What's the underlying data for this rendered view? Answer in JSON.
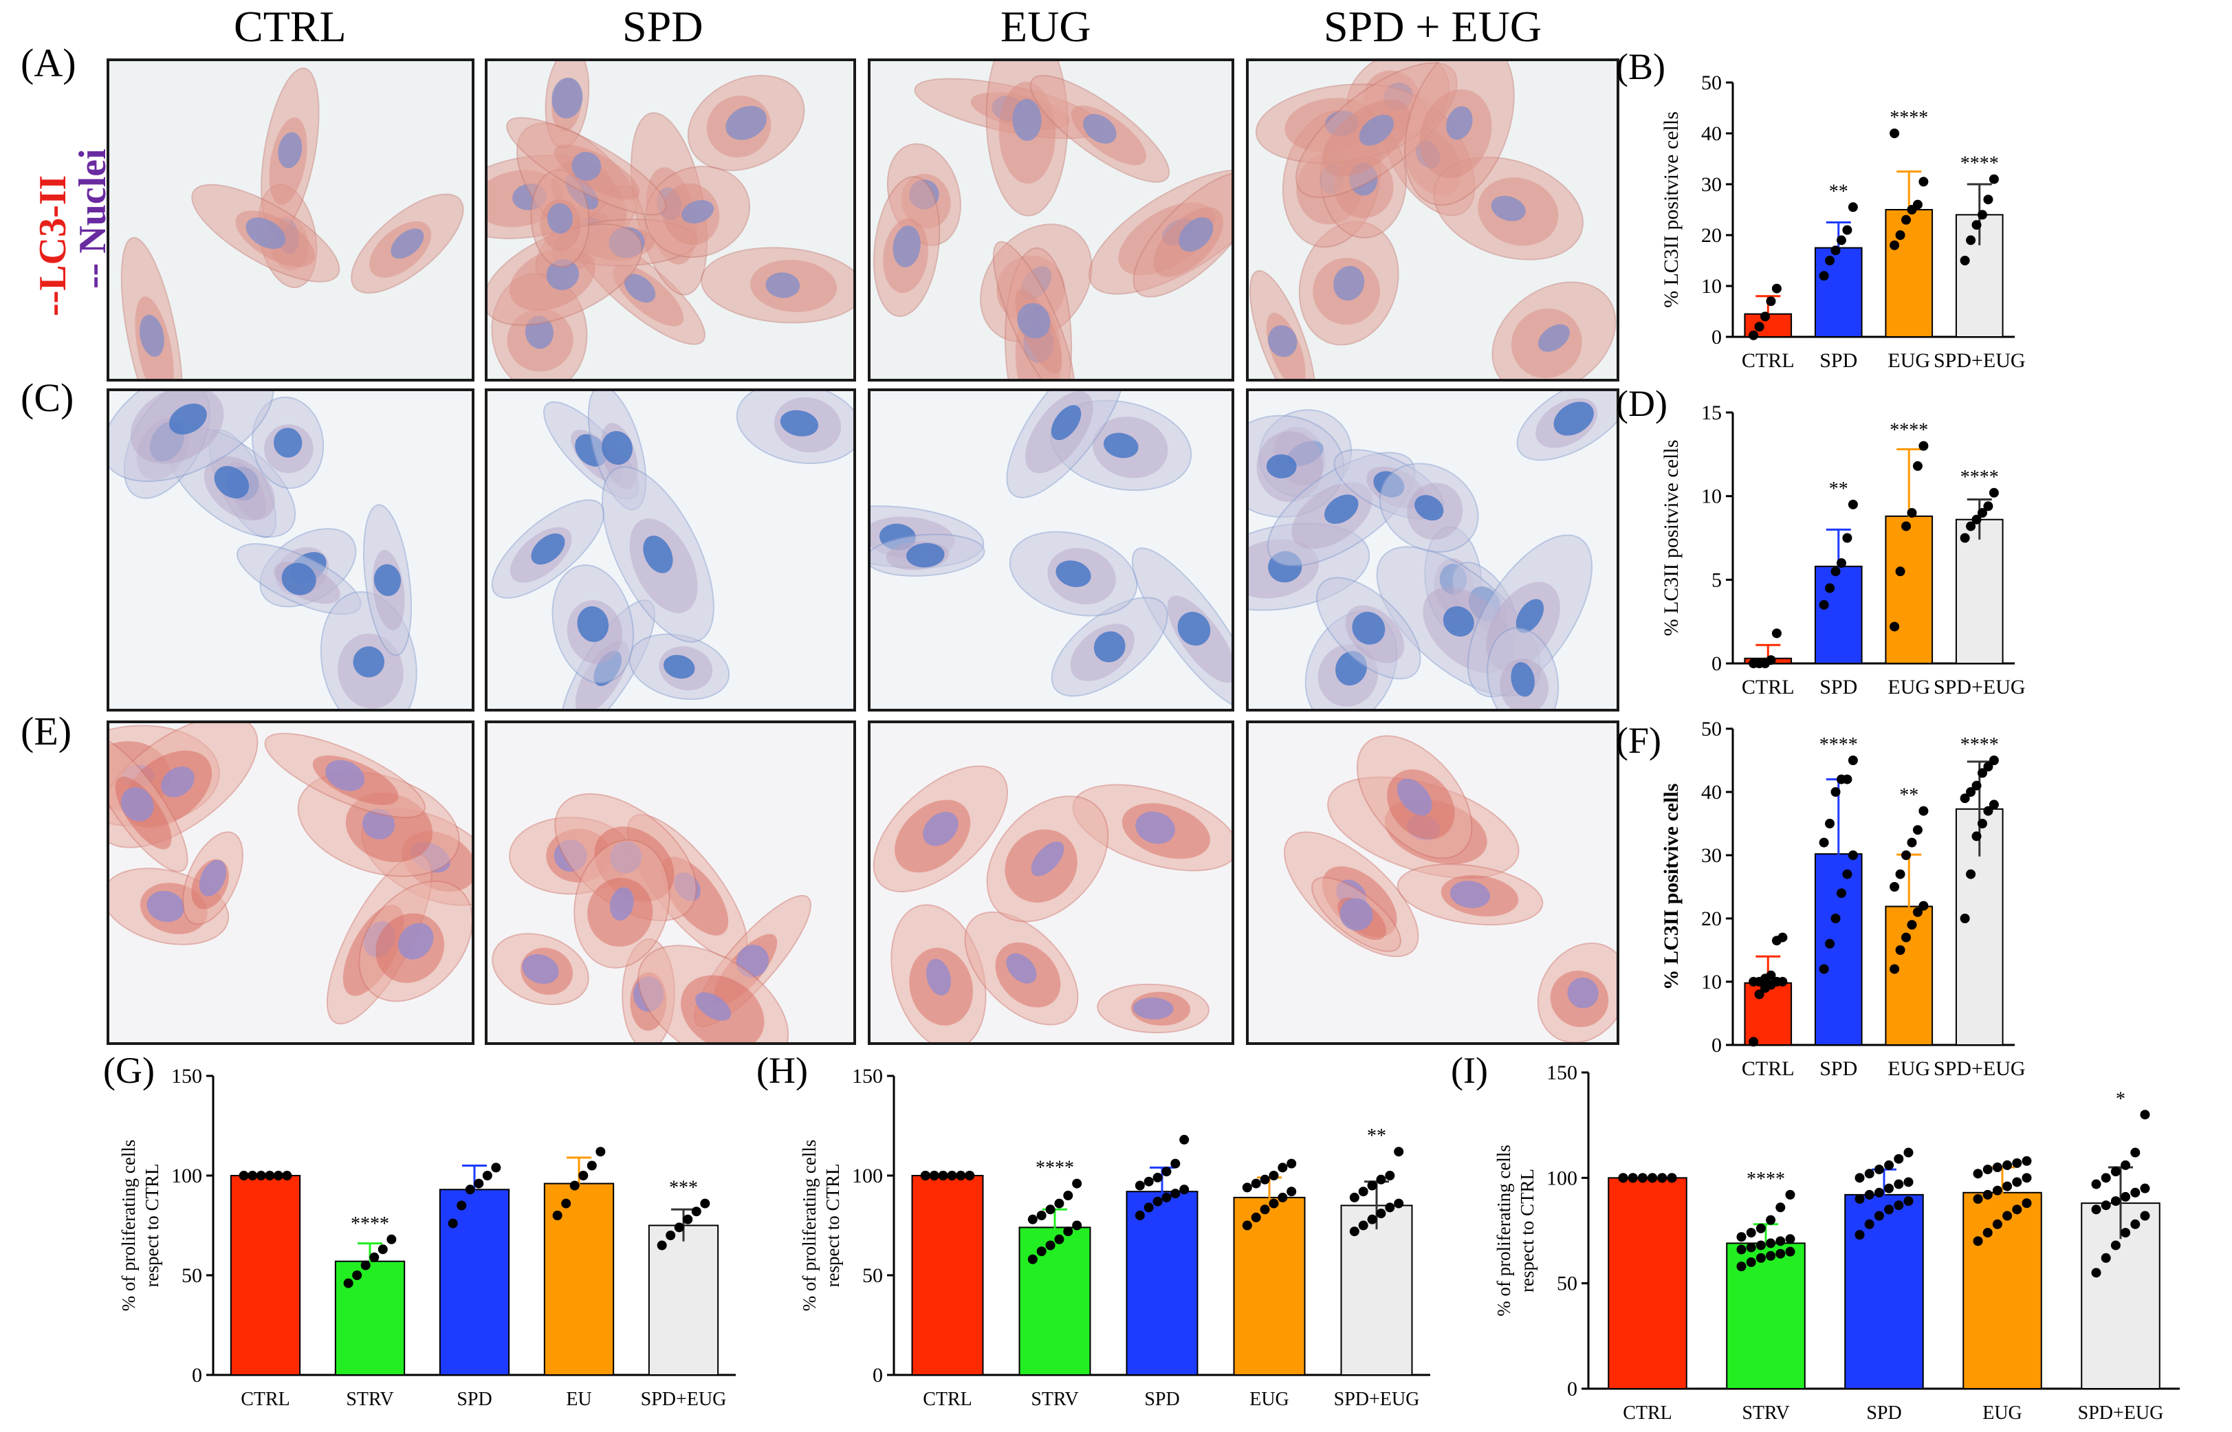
{
  "figure": {
    "column_titles": [
      "CTRL",
      "SPD",
      "EUG",
      "SPD + EUG"
    ],
    "row_letters": [
      "(A)",
      "(C)",
      "(E)"
    ],
    "legend": {
      "lc3": "--LC3-II",
      "nuclei": "-- Nuclei"
    },
    "colors": {
      "ctrl": "#ff2a00",
      "strv": "#22ee22",
      "spd": "#1e3cff",
      "eug": "#ff9900",
      "combo": "#ececec",
      "lc3_text": "#e8201a",
      "nuclei_text": "#6a2aa0"
    }
  },
  "micrographs": [
    {
      "row": "A",
      "stain": "pink"
    },
    {
      "row": "A",
      "stain": "pink"
    },
    {
      "row": "A",
      "stain": "pink"
    },
    {
      "row": "A",
      "stain": "pink"
    },
    {
      "row": "C",
      "stain": "blue"
    },
    {
      "row": "C",
      "stain": "blue"
    },
    {
      "row": "C",
      "stain": "blue"
    },
    {
      "row": "C",
      "stain": "blue"
    },
    {
      "row": "E",
      "stain": "red"
    },
    {
      "row": "E",
      "stain": "red"
    },
    {
      "row": "E",
      "stain": "red"
    },
    {
      "row": "E",
      "stain": "red"
    }
  ],
  "chart_data": [
    {
      "id": "B",
      "type": "bar",
      "letter": "(B)",
      "ylabel": "% LC3II positvive cells",
      "ylim": [
        0,
        50
      ],
      "ticks": [
        0,
        10,
        20,
        30,
        40,
        50
      ],
      "categories": [
        "CTRL",
        "SPD",
        "EUG",
        "SPD+EUG"
      ],
      "values": [
        4.5,
        17.5,
        25,
        24
      ],
      "errors": [
        3.5,
        5,
        7.5,
        6
      ],
      "significance": [
        "",
        "**",
        "****",
        "****"
      ],
      "colors": [
        "#ff2a00",
        "#1e3cff",
        "#ff9900",
        "#ececec"
      ],
      "points": [
        [
          0.3,
          2,
          4,
          7,
          9.5
        ],
        [
          12,
          15,
          17,
          19,
          21,
          25.5
        ],
        [
          18,
          20,
          23,
          25,
          26,
          30.5,
          40
        ],
        [
          15,
          19,
          22,
          24,
          27,
          31
        ]
      ]
    },
    {
      "id": "D",
      "type": "bar",
      "letter": "(D)",
      "ylabel": "% LC3II positvive cells",
      "ylim": [
        0,
        15
      ],
      "ticks": [
        0,
        5,
        10,
        15
      ],
      "categories": [
        "CTRL",
        "SPD",
        "EUG",
        "SPD+EUG"
      ],
      "values": [
        0.3,
        5.8,
        8.8,
        8.6
      ],
      "errors": [
        0.8,
        2.2,
        4,
        1.2
      ],
      "significance": [
        "",
        "**",
        "****",
        "****"
      ],
      "colors": [
        "#ff2a00",
        "#1e3cff",
        "#ff9900",
        "#ececec"
      ],
      "points": [
        [
          0,
          0,
          0,
          0.2,
          1.8
        ],
        [
          3.5,
          4.5,
          5.5,
          6,
          7.5,
          9.5
        ],
        [
          2.2,
          5.5,
          8.2,
          9,
          11.8,
          13
        ],
        [
          7.5,
          8.2,
          8.6,
          9,
          9.4,
          10.2
        ]
      ]
    },
    {
      "id": "F",
      "type": "bar",
      "letter": "(F)",
      "ylabel": "% LC3II positvive cells",
      "ylim": [
        0,
        50
      ],
      "ticks": [
        0,
        10,
        20,
        30,
        40,
        50
      ],
      "categories": [
        "CTRL",
        "SPD",
        "EUG",
        "SPD+EUG"
      ],
      "values": [
        9.8,
        30.2,
        21.9,
        37.3
      ],
      "errors": [
        4.2,
        11.8,
        8.2,
        7.5
      ],
      "significance": [
        "",
        "****",
        "**",
        "****"
      ],
      "colors": [
        "#ff2a00",
        "#1e3cff",
        "#ff9900",
        "#ececec"
      ],
      "points": [
        [
          0.5,
          8,
          9,
          9.5,
          10,
          10,
          10,
          10,
          10.5,
          11,
          16.5,
          17
        ],
        [
          12,
          16,
          20,
          24,
          27,
          30,
          32,
          35,
          40,
          42,
          42,
          45
        ],
        [
          12,
          15,
          17,
          19,
          21,
          22,
          25,
          27,
          30,
          32,
          34,
          37
        ],
        [
          20,
          27,
          33,
          35,
          37,
          38,
          39,
          40,
          41,
          43,
          44,
          45
        ]
      ]
    },
    {
      "id": "G",
      "type": "bar",
      "letter": "(G)",
      "ylabel": "% of proliferating cells respect to CTRL",
      "ylabel_lines": [
        "% of proliferating cells",
        "respect to CTRL"
      ],
      "ylim": [
        0,
        150
      ],
      "ticks": [
        0,
        50,
        100,
        150
      ],
      "categories": [
        "CTRL",
        "STRV",
        "SPD",
        "EU",
        "SPD+EUG"
      ],
      "values": [
        100,
        57,
        93,
        96,
        75
      ],
      "errors": [
        0,
        9,
        12,
        13,
        8
      ],
      "significance": [
        "",
        "****",
        "",
        "",
        "***"
      ],
      "colors": [
        "#ff2a00",
        "#22ee22",
        "#1e3cff",
        "#ff9900",
        "#ececec"
      ],
      "points": [
        [
          100,
          100,
          100,
          100,
          100,
          100
        ],
        [
          46,
          50,
          55,
          59,
          63,
          68
        ],
        [
          76,
          85,
          93,
          96,
          100,
          104
        ],
        [
          80,
          86,
          95,
          100,
          105,
          112
        ],
        [
          65,
          70,
          74,
          78,
          82,
          86
        ]
      ]
    },
    {
      "id": "H",
      "type": "bar",
      "letter": "(H)",
      "ylabel": "% of proliferating cells respect to CTRL",
      "ylabel_lines": [
        "% of proliferating cells",
        "respect to CTRL"
      ],
      "ylim": [
        0,
        150
      ],
      "ticks": [
        0,
        50,
        100,
        150
      ],
      "categories": [
        "CTRL",
        "STRV",
        "SPD",
        "EUG",
        "SPD+EUG"
      ],
      "values": [
        100,
        74,
        92,
        89,
        85
      ],
      "errors": [
        0,
        9,
        12,
        10,
        12
      ],
      "significance": [
        "",
        "****",
        "",
        "",
        "**"
      ],
      "colors": [
        "#ff2a00",
        "#22ee22",
        "#1e3cff",
        "#ff9900",
        "#ececec"
      ],
      "points": [
        [
          100,
          100,
          100,
          100,
          100,
          100,
          100,
          100,
          100,
          100,
          100,
          100
        ],
        [
          58,
          62,
          65,
          68,
          72,
          75,
          78,
          80,
          83,
          86,
          90,
          96
        ],
        [
          80,
          84,
          87,
          89,
          91,
          93,
          95,
          97,
          99,
          102,
          106,
          118
        ],
        [
          75,
          79,
          83,
          86,
          89,
          92,
          94,
          96,
          98,
          100,
          104,
          106
        ],
        [
          72,
          75,
          78,
          81,
          84,
          86,
          89,
          92,
          95,
          98,
          100,
          112
        ]
      ]
    },
    {
      "id": "I",
      "type": "bar",
      "letter": "(I)",
      "ylabel": "% of proliferating cells respect to CTRL",
      "ylabel_lines": [
        "% of proliferating cells",
        "respect to CTRL"
      ],
      "ylim": [
        0,
        150
      ],
      "ticks": [
        0,
        50,
        100,
        150
      ],
      "categories": [
        "CTRL",
        "STRV",
        "SPD",
        "EUG",
        "SPD+EUG"
      ],
      "values": [
        100,
        69,
        92,
        93,
        88
      ],
      "errors": [
        0,
        9,
        12,
        12,
        17
      ],
      "significance": [
        "",
        "****",
        "",
        "",
        "*"
      ],
      "colors": [
        "#ff2a00",
        "#22ee22",
        "#1e3cff",
        "#ff9900",
        "#ececec"
      ],
      "points": [
        [
          100,
          100,
          100,
          100,
          100,
          100,
          100,
          100,
          100,
          100,
          100,
          100,
          100,
          100,
          100,
          100,
          100,
          100
        ],
        [
          58,
          60,
          62,
          63,
          64,
          65,
          66,
          67,
          68,
          69,
          70,
          71,
          72,
          74,
          76,
          80,
          86,
          92
        ],
        [
          73,
          78,
          82,
          85,
          87,
          89,
          90,
          92,
          93,
          95,
          97,
          98,
          100,
          102,
          104,
          106,
          109,
          112
        ],
        [
          70,
          74,
          78,
          82,
          85,
          88,
          90,
          92,
          94,
          96,
          98,
          100,
          102,
          104,
          105,
          106,
          107,
          108
        ],
        [
          55,
          62,
          68,
          74,
          78,
          82,
          85,
          87,
          89,
          91,
          93,
          95,
          97,
          100,
          103,
          106,
          112,
          130
        ]
      ]
    }
  ]
}
